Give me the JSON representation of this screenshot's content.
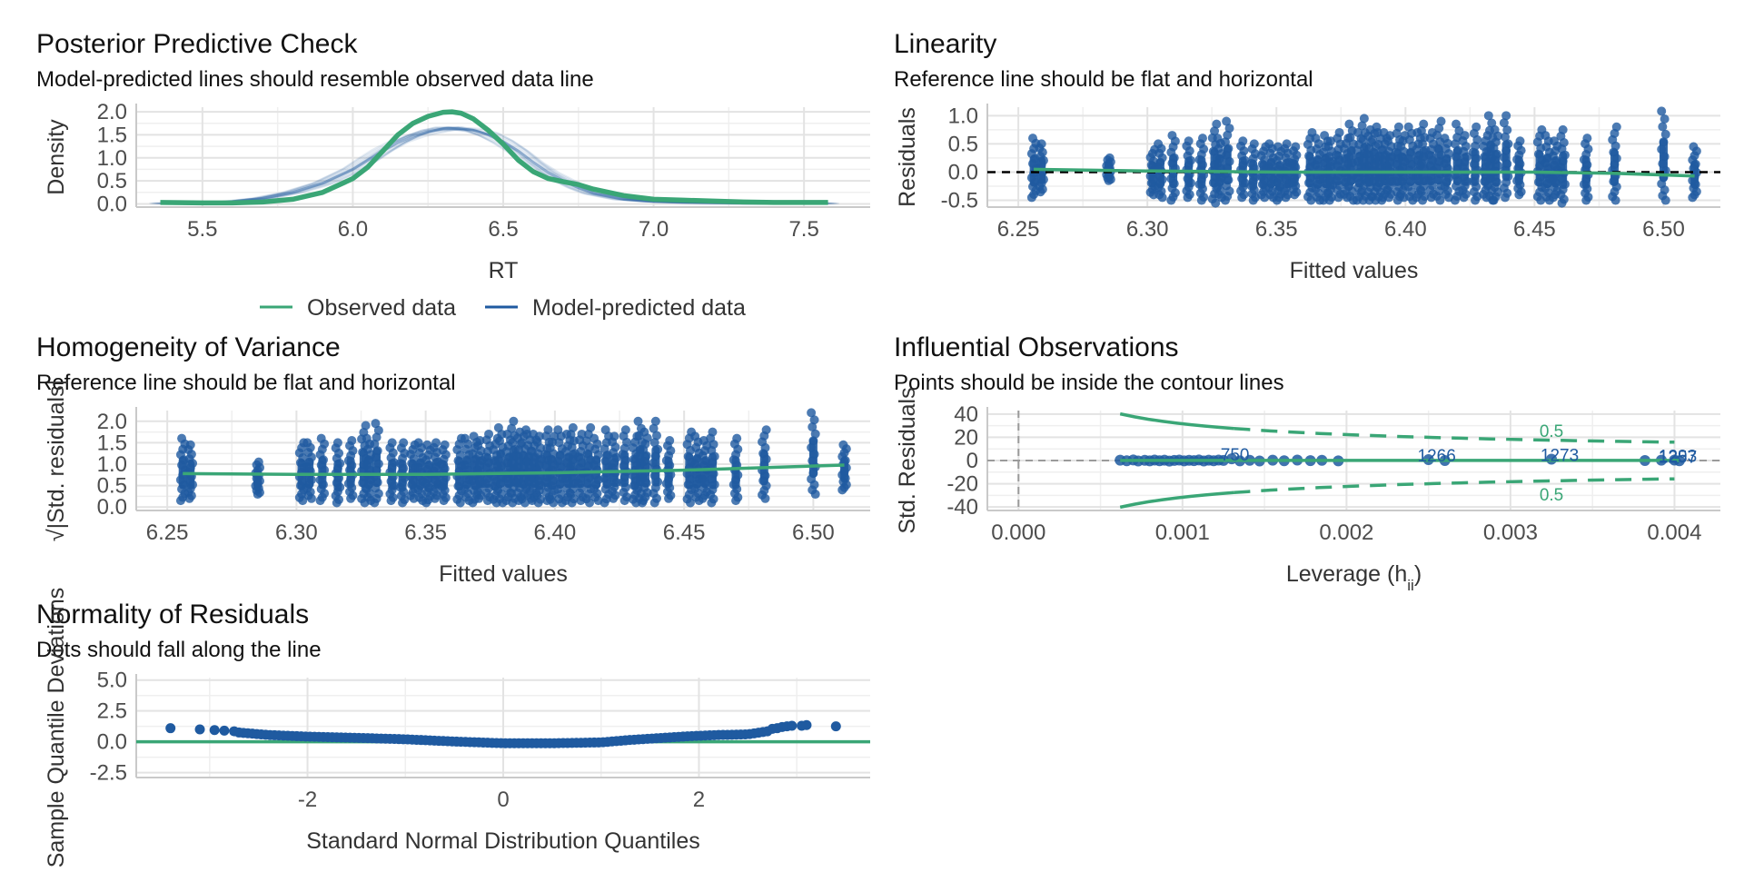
{
  "colors": {
    "observed": "#3aa676",
    "predicted": "#1f5aa0",
    "grid": "#e3e3e3",
    "reference": "#000000"
  },
  "legend": {
    "observed_label": "Observed data",
    "predicted_label": "Model-predicted data"
  },
  "chart_data": [
    {
      "id": "ppc",
      "type": "line",
      "title": "Posterior Predictive Check",
      "subtitle": "Model-predicted lines should resemble observed data line",
      "xlabel": "RT",
      "ylabel": "Density",
      "xlim": [
        5.28,
        7.72
      ],
      "ylim": [
        -0.07,
        2.1
      ],
      "xticks": [
        5.5,
        6.0,
        6.5,
        7.0,
        7.5
      ],
      "xtick_labels": [
        "5.5",
        "6.0",
        "6.5",
        "7.0",
        "7.5"
      ],
      "yticks": [
        0.0,
        0.5,
        1.0,
        1.5,
        2.0
      ],
      "ytick_labels": [
        "0.0",
        "0.5",
        "1.0",
        "1.5",
        "2.0"
      ],
      "legend_position": "bottom",
      "series": [
        {
          "name": "Observed data",
          "x": [
            5.36,
            5.5,
            5.6,
            5.7,
            5.8,
            5.9,
            6.0,
            6.05,
            6.1,
            6.15,
            6.2,
            6.25,
            6.3,
            6.33,
            6.36,
            6.4,
            6.45,
            6.5,
            6.55,
            6.6,
            6.65,
            6.7,
            6.75,
            6.8,
            6.9,
            7.0,
            7.1,
            7.2,
            7.3,
            7.4,
            7.5,
            7.58
          ],
          "y": [
            0.03,
            0.02,
            0.02,
            0.04,
            0.1,
            0.25,
            0.55,
            0.8,
            1.15,
            1.5,
            1.75,
            1.9,
            1.99,
            2.0,
            1.97,
            1.85,
            1.6,
            1.3,
            0.95,
            0.7,
            0.55,
            0.48,
            0.42,
            0.32,
            0.18,
            0.1,
            0.08,
            0.06,
            0.04,
            0.03,
            0.03,
            0.03
          ]
        },
        {
          "name": "Model-predicted data",
          "x": [
            5.36,
            5.5,
            5.6,
            5.7,
            5.8,
            5.9,
            6.0,
            6.05,
            6.1,
            6.15,
            6.2,
            6.25,
            6.3,
            6.35,
            6.4,
            6.45,
            6.5,
            6.55,
            6.6,
            6.65,
            6.7,
            6.75,
            6.8,
            6.9,
            7.0,
            7.1,
            7.2,
            7.3,
            7.4,
            7.5,
            7.58
          ],
          "y": [
            0.01,
            0.02,
            0.05,
            0.12,
            0.25,
            0.45,
            0.75,
            0.95,
            1.15,
            1.33,
            1.47,
            1.57,
            1.63,
            1.64,
            1.6,
            1.5,
            1.35,
            1.15,
            0.9,
            0.68,
            0.5,
            0.35,
            0.23,
            0.1,
            0.05,
            0.03,
            0.02,
            0.01,
            0.01,
            0.01,
            0.01
          ]
        }
      ]
    },
    {
      "id": "linearity",
      "type": "scatter",
      "title": "Linearity",
      "subtitle": "Reference line should be flat and horizontal",
      "xlabel": "Fitted values",
      "ylabel": "Residuals",
      "xlim": [
        6.238,
        6.522
      ],
      "ylim": [
        -0.62,
        1.15
      ],
      "xticks": [
        6.25,
        6.3,
        6.35,
        6.4,
        6.45,
        6.5
      ],
      "xtick_labels": [
        "6.25",
        "6.30",
        "6.35",
        "6.40",
        "6.45",
        "6.50"
      ],
      "yticks": [
        -0.5,
        0.0,
        0.5,
        1.0
      ],
      "ytick_labels": [
        "-0.5",
        "0.0",
        "0.5",
        "1.0"
      ],
      "reference_y": 0,
      "columns": {
        "x": [
          6.256,
          6.259,
          6.285,
          6.302,
          6.305,
          6.31,
          6.316,
          6.321,
          6.326,
          6.328,
          6.331,
          6.337,
          6.341,
          6.345,
          6.348,
          6.351,
          6.354,
          6.357,
          6.363,
          6.366,
          6.369,
          6.371,
          6.374,
          6.377,
          6.379,
          6.382,
          6.384,
          6.386,
          6.388,
          6.39,
          6.392,
          6.394,
          6.397,
          6.399,
          6.402,
          6.405,
          6.407,
          6.41,
          6.413,
          6.416,
          6.42,
          6.423,
          6.427,
          6.431,
          6.433,
          6.435,
          6.439,
          6.444,
          6.452,
          6.455,
          6.458,
          6.461,
          6.47,
          6.481,
          6.5,
          6.512
        ],
        "ymin": [
          -0.45,
          -0.35,
          -0.15,
          -0.4,
          -0.45,
          -0.5,
          -0.45,
          -0.5,
          -0.55,
          -0.45,
          -0.5,
          -0.45,
          -0.5,
          -0.45,
          -0.45,
          -0.5,
          -0.45,
          -0.4,
          -0.5,
          -0.5,
          -0.5,
          -0.5,
          -0.45,
          -0.45,
          -0.5,
          -0.5,
          -0.5,
          -0.5,
          -0.5,
          -0.5,
          -0.45,
          -0.45,
          -0.5,
          -0.45,
          -0.5,
          -0.45,
          -0.5,
          -0.45,
          -0.5,
          -0.45,
          -0.5,
          -0.45,
          -0.5,
          -0.45,
          -0.5,
          -0.5,
          -0.45,
          -0.4,
          -0.5,
          -0.5,
          -0.45,
          -0.55,
          -0.5,
          -0.5,
          -0.5,
          -0.45
        ],
        "ymax": [
          0.6,
          0.5,
          0.25,
          0.4,
          0.5,
          0.65,
          0.55,
          0.6,
          0.85,
          0.6,
          0.9,
          0.55,
          0.5,
          0.45,
          0.5,
          0.45,
          0.5,
          0.45,
          0.7,
          0.6,
          0.65,
          0.55,
          0.7,
          0.6,
          0.85,
          0.7,
          0.95,
          0.75,
          0.8,
          0.7,
          0.7,
          0.65,
          0.8,
          0.65,
          0.8,
          0.7,
          0.85,
          0.7,
          0.9,
          0.6,
          0.85,
          0.65,
          0.8,
          0.65,
          1.0,
          0.75,
          1.0,
          0.55,
          0.75,
          0.65,
          0.55,
          0.75,
          0.6,
          0.8,
          1.08,
          0.45
        ]
      },
      "smooth": {
        "x": [
          6.256,
          6.3,
          6.35,
          6.4,
          6.45,
          6.48,
          6.512
        ],
        "y": [
          0.05,
          0.02,
          0.0,
          0.0,
          0.0,
          -0.02,
          -0.07
        ]
      }
    },
    {
      "id": "homogeneity",
      "type": "scatter",
      "title": "Homogeneity of Variance",
      "subtitle": "Reference line should be flat and horizontal",
      "xlabel": "Fitted values",
      "ylabel": "√|Std. residuals|",
      "xlim": [
        6.238,
        6.522
      ],
      "ylim": [
        -0.08,
        2.25
      ],
      "xticks": [
        6.25,
        6.3,
        6.35,
        6.4,
        6.45,
        6.5
      ],
      "xtick_labels": [
        "6.25",
        "6.30",
        "6.35",
        "6.40",
        "6.45",
        "6.50"
      ],
      "yticks": [
        0.0,
        0.5,
        1.0,
        1.5,
        2.0
      ],
      "ytick_labels": [
        "0.0",
        "0.5",
        "1.0",
        "1.5",
        "2.0"
      ],
      "columns": {
        "x": [
          6.256,
          6.259,
          6.285,
          6.302,
          6.305,
          6.31,
          6.316,
          6.321,
          6.326,
          6.328,
          6.331,
          6.337,
          6.341,
          6.345,
          6.348,
          6.351,
          6.354,
          6.357,
          6.363,
          6.366,
          6.369,
          6.371,
          6.374,
          6.377,
          6.379,
          6.382,
          6.384,
          6.386,
          6.388,
          6.39,
          6.392,
          6.394,
          6.397,
          6.399,
          6.402,
          6.405,
          6.407,
          6.41,
          6.413,
          6.416,
          6.42,
          6.423,
          6.427,
          6.431,
          6.433,
          6.435,
          6.439,
          6.444,
          6.452,
          6.455,
          6.458,
          6.461,
          6.47,
          6.481,
          6.5,
          6.512
        ],
        "ymin": [
          0.15,
          0.2,
          0.3,
          0.15,
          0.2,
          0.15,
          0.1,
          0.2,
          0.1,
          0.15,
          0.1,
          0.15,
          0.1,
          0.2,
          0.15,
          0.1,
          0.2,
          0.15,
          0.1,
          0.15,
          0.1,
          0.2,
          0.15,
          0.1,
          0.1,
          0.15,
          0.1,
          0.15,
          0.1,
          0.2,
          0.15,
          0.1,
          0.15,
          0.1,
          0.1,
          0.15,
          0.1,
          0.15,
          0.1,
          0.15,
          0.1,
          0.2,
          0.15,
          0.1,
          0.1,
          0.15,
          0.1,
          0.2,
          0.1,
          0.15,
          0.2,
          0.1,
          0.15,
          0.2,
          0.3,
          0.4
        ],
        "ymax": [
          1.6,
          1.45,
          1.05,
          1.5,
          1.5,
          1.6,
          1.5,
          1.55,
          1.9,
          1.6,
          1.95,
          1.5,
          1.5,
          1.45,
          1.5,
          1.45,
          1.5,
          1.45,
          1.6,
          1.6,
          1.65,
          1.55,
          1.7,
          1.6,
          1.85,
          1.7,
          2.0,
          1.75,
          1.8,
          1.7,
          1.7,
          1.65,
          1.8,
          1.65,
          1.8,
          1.7,
          1.85,
          1.7,
          1.85,
          1.6,
          1.8,
          1.65,
          1.8,
          1.65,
          2.0,
          1.75,
          2.0,
          1.55,
          1.75,
          1.65,
          1.55,
          1.75,
          1.6,
          1.8,
          2.2,
          1.45
        ]
      },
      "smooth": {
        "x": [
          6.256,
          6.3,
          6.35,
          6.4,
          6.45,
          6.512
        ],
        "y": [
          0.78,
          0.76,
          0.76,
          0.8,
          0.86,
          0.98
        ]
      }
    },
    {
      "id": "influential",
      "type": "scatter",
      "title": "Influential Observations",
      "subtitle": "Points should be inside the contour lines",
      "xlabel": "Leverage (hii)",
      "ylabel": "Std. Residuals",
      "xlim": [
        -0.00019,
        0.00428
      ],
      "ylim": [
        -43,
        43
      ],
      "xticks": [
        0.0,
        0.001,
        0.002,
        0.003,
        0.004
      ],
      "xtick_labels": [
        "0.000",
        "0.001",
        "0.002",
        "0.003",
        "0.004"
      ],
      "yticks": [
        -40,
        -20,
        0,
        20,
        40
      ],
      "ytick_labels": [
        "-40",
        "-20",
        "0",
        "20",
        "40"
      ],
      "contour_level_label": "0.5",
      "points": {
        "x": [
          0.00062,
          0.00066,
          0.0007,
          0.00073,
          0.00077,
          0.0008,
          0.00083,
          0.00086,
          0.00089,
          0.00092,
          0.00095,
          0.00098,
          0.00101,
          0.00104,
          0.00107,
          0.0011,
          0.00113,
          0.00116,
          0.00119,
          0.00122,
          0.00125,
          0.0013,
          0.00135,
          0.00141,
          0.00147,
          0.00155,
          0.00162,
          0.0017,
          0.00178,
          0.00185,
          0.00195,
          0.0025,
          0.0026,
          0.00325,
          0.00382,
          0.00392,
          0.004,
          0.00403
        ],
        "y": [
          0.3,
          -0.2,
          0.5,
          -0.4,
          0.2,
          -0.3,
          0.4,
          -0.2,
          0.3,
          -0.5,
          0.1,
          0.4,
          -0.3,
          0.2,
          -0.1,
          0.5,
          -0.4,
          0.3,
          -0.2,
          0.4,
          0.1,
          1.5,
          -0.3,
          0.2,
          -0.4,
          0.3,
          -0.2,
          0.4,
          -0.1,
          0.2,
          -0.3,
          0.8,
          0.0,
          1.2,
          0.0,
          0.3,
          0.4,
          -0.2
        ]
      },
      "labeled_points": [
        {
          "label": "750",
          "x": 0.00132,
          "y": 1.5
        },
        {
          "label": "1266",
          "x": 0.00255,
          "y": 0.8
        },
        {
          "label": "1273",
          "x": 0.0033,
          "y": 1.2
        },
        {
          "label": "1293",
          "x": 0.00402,
          "y": 0.4
        },
        {
          "label": "1257",
          "x": 0.00402,
          "y": -0.2
        }
      ]
    },
    {
      "id": "qq",
      "type": "scatter",
      "title": "Normality of Residuals",
      "subtitle": "Dots should fall along the line",
      "xlabel": "Standard Normal Distribution Quantiles",
      "ylabel": "Sample Quantile Deviations",
      "xlim": [
        -3.75,
        3.75
      ],
      "ylim": [
        -2.9,
        5.2
      ],
      "xticks": [
        -2,
        0,
        2
      ],
      "xtick_labels": [
        "-2",
        "0",
        "2"
      ],
      "yticks": [
        -2.5,
        0.0,
        2.5,
        5.0
      ],
      "ytick_labels": [
        "-2.5",
        "0.0",
        "2.5",
        "5.0"
      ],
      "reference_y": 0,
      "curve": {
        "x": [
          -2.7,
          -2.4,
          -2.0,
          -1.5,
          -1.0,
          -0.5,
          0.0,
          0.5,
          1.0,
          1.3,
          1.6,
          1.9,
          2.2,
          2.5,
          2.7
        ],
        "y": [
          0.75,
          0.55,
          0.42,
          0.32,
          0.2,
          0.02,
          -0.12,
          -0.12,
          -0.05,
          0.15,
          0.3,
          0.45,
          0.55,
          0.6,
          0.85
        ]
      },
      "tail_points": {
        "x": [
          -3.4,
          -3.1,
          -2.95,
          -2.85,
          -2.75,
          2.75,
          2.8,
          2.85,
          2.9,
          2.95,
          3.05,
          3.1,
          3.4
        ],
        "y": [
          1.1,
          1.0,
          0.95,
          0.9,
          0.85,
          1.05,
          1.1,
          1.2,
          1.25,
          1.3,
          1.3,
          1.35,
          1.25
        ]
      }
    }
  ]
}
